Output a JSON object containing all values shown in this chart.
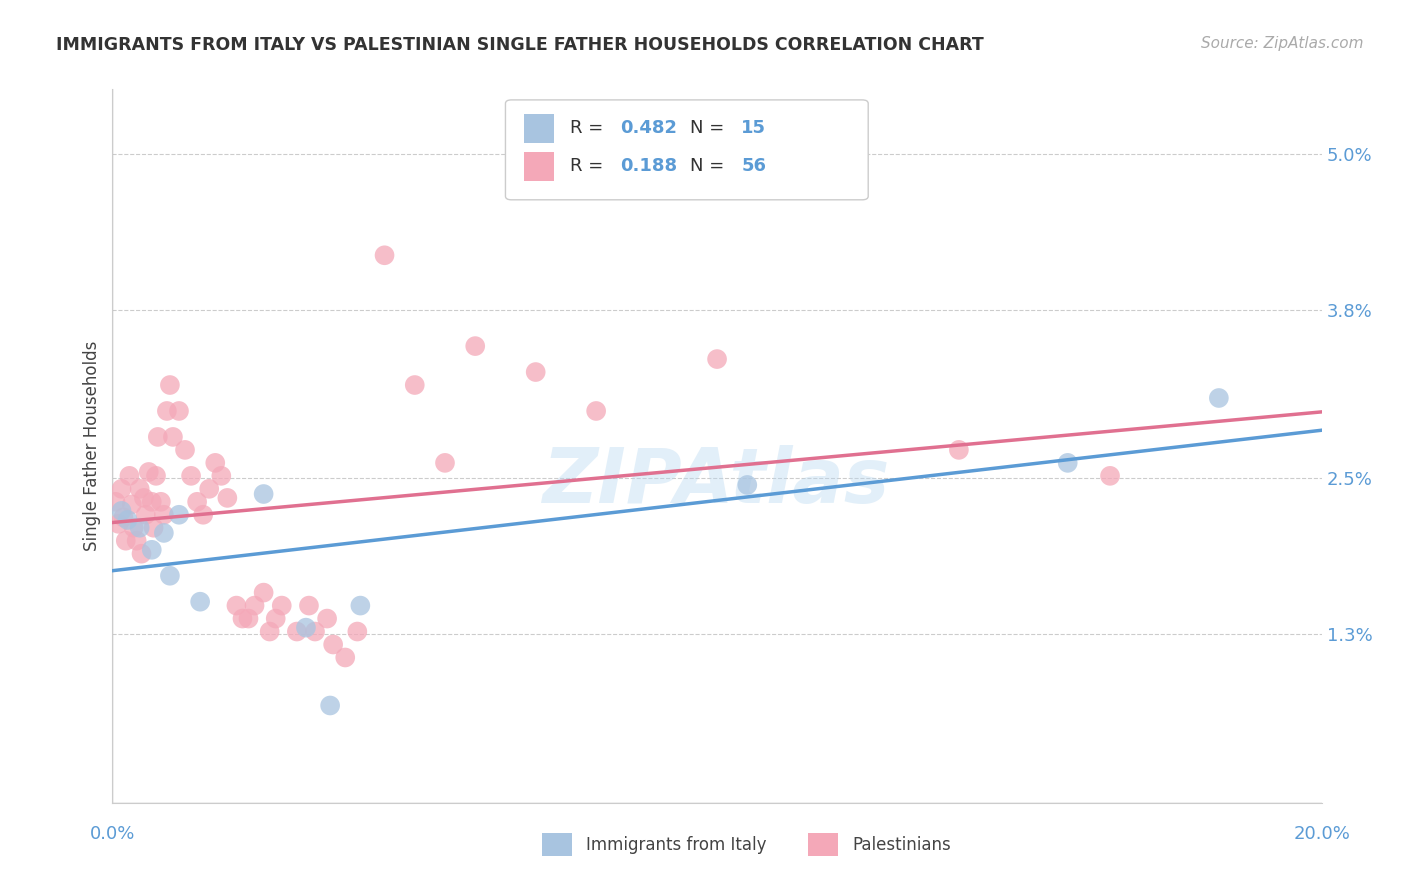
{
  "title": "IMMIGRANTS FROM ITALY VS PALESTINIAN SINGLE FATHER HOUSEHOLDS CORRELATION CHART",
  "source": "Source: ZipAtlas.com",
  "ylabel": "Single Father Households",
  "ytick_vals": [
    1.3,
    2.5,
    3.8,
    5.0
  ],
  "ytick_labels": [
    "1.3%",
    "2.5%",
    "3.8%",
    "5.0%"
  ],
  "xrange": [
    0.0,
    20.0
  ],
  "yrange": [
    0.0,
    5.5
  ],
  "legend_italy_R": "0.482",
  "legend_italy_N": "15",
  "legend_pal_R": "0.188",
  "legend_pal_N": "56",
  "color_italy_fill": "#a8c4e0",
  "color_pal_fill": "#f4a8b8",
  "color_italy_line": "#5b9bd5",
  "color_pal_line": "#e07090",
  "italy_x": [
    0.15,
    0.25,
    0.45,
    0.65,
    0.85,
    0.95,
    1.1,
    1.45,
    2.5,
    3.2,
    3.6,
    4.1,
    10.5,
    15.8,
    18.3
  ],
  "italy_y": [
    2.25,
    2.18,
    2.12,
    1.95,
    2.08,
    1.75,
    2.22,
    1.55,
    2.38,
    1.35,
    0.75,
    1.52,
    2.45,
    2.62,
    3.12
  ],
  "pal_x": [
    0.05,
    0.1,
    0.15,
    0.18,
    0.22,
    0.28,
    0.32,
    0.35,
    0.4,
    0.45,
    0.48,
    0.52,
    0.55,
    0.6,
    0.65,
    0.68,
    0.72,
    0.75,
    0.8,
    0.85,
    0.9,
    0.95,
    1.0,
    1.1,
    1.2,
    1.3,
    1.4,
    1.5,
    1.6,
    1.7,
    1.8,
    1.9,
    2.05,
    2.15,
    2.25,
    2.35,
    2.5,
    2.6,
    2.7,
    2.8,
    3.05,
    3.25,
    3.35,
    3.55,
    3.65,
    3.85,
    4.05,
    4.5,
    5.0,
    5.5,
    6.0,
    7.0,
    8.0,
    10.0,
    14.0,
    16.5
  ],
  "pal_y": [
    2.32,
    2.15,
    2.42,
    2.2,
    2.02,
    2.52,
    2.3,
    2.12,
    2.02,
    2.42,
    1.92,
    2.35,
    2.22,
    2.55,
    2.32,
    2.12,
    2.52,
    2.82,
    2.32,
    2.22,
    3.02,
    3.22,
    2.82,
    3.02,
    2.72,
    2.52,
    2.32,
    2.22,
    2.42,
    2.62,
    2.52,
    2.35,
    1.52,
    1.42,
    1.42,
    1.52,
    1.62,
    1.32,
    1.42,
    1.52,
    1.32,
    1.52,
    1.32,
    1.42,
    1.22,
    1.12,
    1.32,
    4.22,
    3.22,
    2.62,
    3.52,
    3.32,
    3.02,
    3.42,
    2.72,
    2.52
  ]
}
